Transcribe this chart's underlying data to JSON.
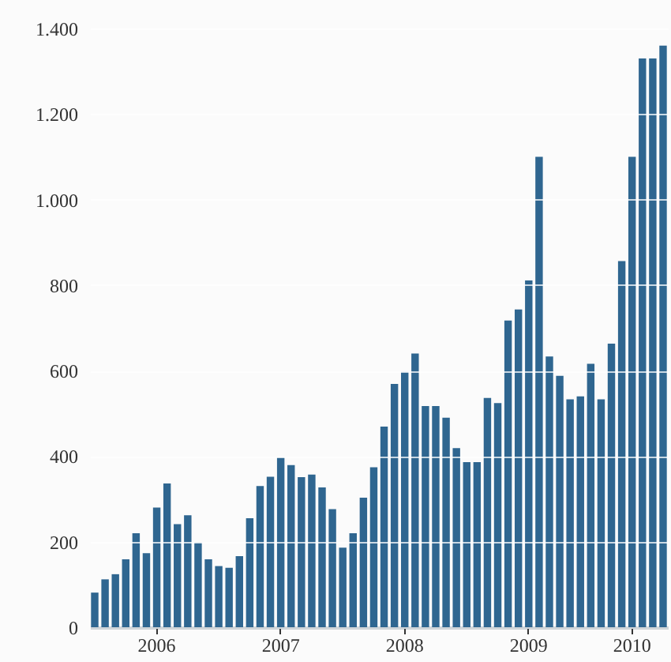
{
  "chart_data": {
    "type": "bar",
    "categories": [
      null,
      null,
      null,
      null,
      null,
      null,
      "2006",
      null,
      null,
      null,
      null,
      null,
      null,
      null,
      null,
      null,
      null,
      null,
      "2007",
      null,
      null,
      null,
      null,
      null,
      null,
      null,
      null,
      null,
      null,
      null,
      "2008",
      null,
      null,
      null,
      null,
      null,
      null,
      null,
      null,
      null,
      null,
      null,
      "2009",
      null,
      null,
      null,
      null,
      null,
      null,
      null,
      null,
      null,
      "2010",
      null,
      null,
      null
    ],
    "values": [
      81,
      112,
      124,
      159,
      220,
      173,
      280,
      336,
      241,
      262,
      198,
      159,
      143,
      139,
      166,
      255,
      330,
      352,
      397,
      379,
      351,
      357,
      327,
      276,
      186,
      220,
      303,
      374,
      469,
      569,
      597,
      640,
      517,
      517,
      490,
      419,
      386,
      386,
      536,
      524,
      717,
      743,
      811,
      1100,
      633,
      588,
      533,
      540,
      616,
      533,
      663,
      856,
      1100,
      1330,
      1330,
      1360
    ],
    "color": "#2f6690",
    "ylim": [
      0,
      1400
    ],
    "yticks": [
      0,
      200,
      400,
      600,
      800,
      {
        "value": 1000,
        "label": "1.000"
      },
      {
        "value": 1200,
        "label": "1.200"
      },
      {
        "value": 1400,
        "label": "1.400"
      }
    ],
    "grid": "y"
  }
}
